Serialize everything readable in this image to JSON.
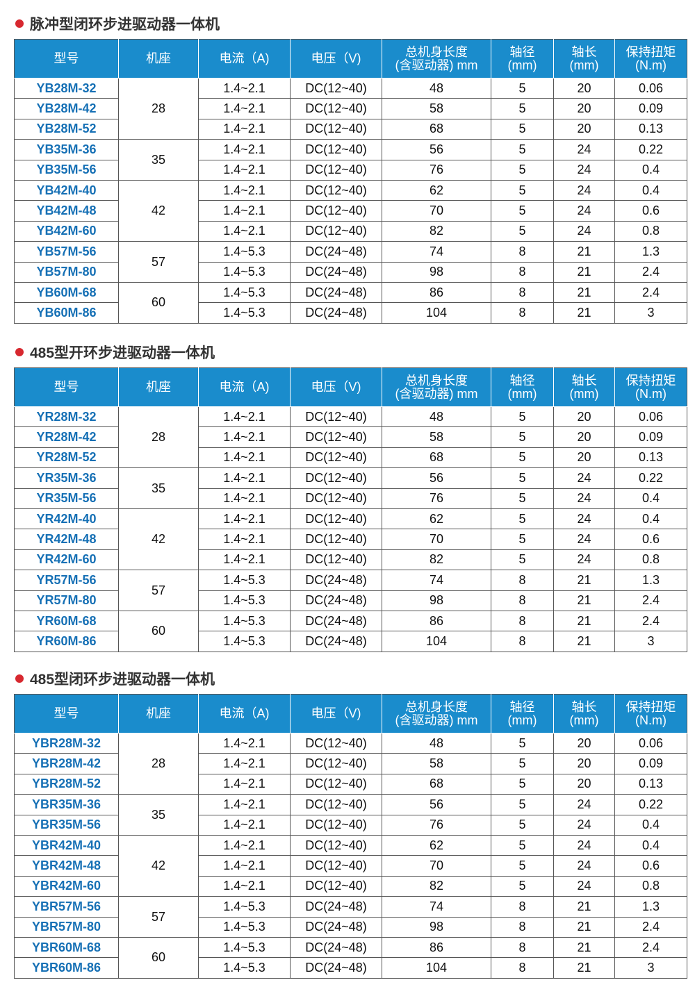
{
  "colors": {
    "header_bg": "#1a8ccc",
    "model_text": "#1670b5",
    "bullet": "#d7282f"
  },
  "headers": [
    "型号",
    "机座",
    "电流（A)",
    "电压（V)",
    "总机身长度\n(含驱动器) mm",
    "轴径\n(mm)",
    "轴长\n(mm)",
    "保持扭矩\n(N.m)"
  ],
  "groups": [
    {
      "seat": "28",
      "span": 3
    },
    {
      "seat": "35",
      "span": 2
    },
    {
      "seat": "42",
      "span": 3
    },
    {
      "seat": "57",
      "span": 2
    },
    {
      "seat": "60",
      "span": 2
    }
  ],
  "sections": [
    {
      "title": "脉冲型闭环步进驱动器一体机",
      "rows": [
        [
          "YB28M-32",
          "1.4~2.1",
          "DC(12~40)",
          "48",
          "5",
          "20",
          "0.06"
        ],
        [
          "YB28M-42",
          "1.4~2.1",
          "DC(12~40)",
          "58",
          "5",
          "20",
          "0.09"
        ],
        [
          "YB28M-52",
          "1.4~2.1",
          "DC(12~40)",
          "68",
          "5",
          "20",
          "0.13"
        ],
        [
          "YB35M-36",
          "1.4~2.1",
          "DC(12~40)",
          "56",
          "5",
          "24",
          "0.22"
        ],
        [
          "YB35M-56",
          "1.4~2.1",
          "DC(12~40)",
          "76",
          "5",
          "24",
          "0.4"
        ],
        [
          "YB42M-40",
          "1.4~2.1",
          "DC(12~40)",
          "62",
          "5",
          "24",
          "0.4"
        ],
        [
          "YB42M-48",
          "1.4~2.1",
          "DC(12~40)",
          "70",
          "5",
          "24",
          "0.6"
        ],
        [
          "YB42M-60",
          "1.4~2.1",
          "DC(12~40)",
          "82",
          "5",
          "24",
          "0.8"
        ],
        [
          "YB57M-56",
          "1.4~5.3",
          "DC(24~48)",
          "74",
          "8",
          "21",
          "1.3"
        ],
        [
          "YB57M-80",
          "1.4~5.3",
          "DC(24~48)",
          "98",
          "8",
          "21",
          "2.4"
        ],
        [
          "YB60M-68",
          "1.4~5.3",
          "DC(24~48)",
          "86",
          "8",
          "21",
          "2.4"
        ],
        [
          "YB60M-86",
          "1.4~5.3",
          "DC(24~48)",
          "104",
          "8",
          "21",
          "3"
        ]
      ]
    },
    {
      "title": "485型开环步进驱动器一体机",
      "rows": [
        [
          "YR28M-32",
          "1.4~2.1",
          "DC(12~40)",
          "48",
          "5",
          "20",
          "0.06"
        ],
        [
          "YR28M-42",
          "1.4~2.1",
          "DC(12~40)",
          "58",
          "5",
          "20",
          "0.09"
        ],
        [
          "YR28M-52",
          "1.4~2.1",
          "DC(12~40)",
          "68",
          "5",
          "20",
          "0.13"
        ],
        [
          "YR35M-36",
          "1.4~2.1",
          "DC(12~40)",
          "56",
          "5",
          "24",
          "0.22"
        ],
        [
          "YR35M-56",
          "1.4~2.1",
          "DC(12~40)",
          "76",
          "5",
          "24",
          "0.4"
        ],
        [
          "YR42M-40",
          "1.4~2.1",
          "DC(12~40)",
          "62",
          "5",
          "24",
          "0.4"
        ],
        [
          "YR42M-48",
          "1.4~2.1",
          "DC(12~40)",
          "70",
          "5",
          "24",
          "0.6"
        ],
        [
          "YR42M-60",
          "1.4~2.1",
          "DC(12~40)",
          "82",
          "5",
          "24",
          "0.8"
        ],
        [
          "YR57M-56",
          "1.4~5.3",
          "DC(24~48)",
          "74",
          "8",
          "21",
          "1.3"
        ],
        [
          "YR57M-80",
          "1.4~5.3",
          "DC(24~48)",
          "98",
          "8",
          "21",
          "2.4"
        ],
        [
          "YR60M-68",
          "1.4~5.3",
          "DC(24~48)",
          "86",
          "8",
          "21",
          "2.4"
        ],
        [
          "YR60M-86",
          "1.4~5.3",
          "DC(24~48)",
          "104",
          "8",
          "21",
          "3"
        ]
      ]
    },
    {
      "title": "485型闭环步进驱动器一体机",
      "rows": [
        [
          "YBR28M-32",
          "1.4~2.1",
          "DC(12~40)",
          "48",
          "5",
          "20",
          "0.06"
        ],
        [
          "YBR28M-42",
          "1.4~2.1",
          "DC(12~40)",
          "58",
          "5",
          "20",
          "0.09"
        ],
        [
          "YBR28M-52",
          "1.4~2.1",
          "DC(12~40)",
          "68",
          "5",
          "20",
          "0.13"
        ],
        [
          "YBR35M-36",
          "1.4~2.1",
          "DC(12~40)",
          "56",
          "5",
          "24",
          "0.22"
        ],
        [
          "YBR35M-56",
          "1.4~2.1",
          "DC(12~40)",
          "76",
          "5",
          "24",
          "0.4"
        ],
        [
          "YBR42M-40",
          "1.4~2.1",
          "DC(12~40)",
          "62",
          "5",
          "24",
          "0.4"
        ],
        [
          "YBR42M-48",
          "1.4~2.1",
          "DC(12~40)",
          "70",
          "5",
          "24",
          "0.6"
        ],
        [
          "YBR42M-60",
          "1.4~2.1",
          "DC(12~40)",
          "82",
          "5",
          "24",
          "0.8"
        ],
        [
          "YBR57M-56",
          "1.4~5.3",
          "DC(24~48)",
          "74",
          "8",
          "21",
          "1.3"
        ],
        [
          "YBR57M-80",
          "1.4~5.3",
          "DC(24~48)",
          "98",
          "8",
          "21",
          "2.4"
        ],
        [
          "YBR60M-68",
          "1.4~5.3",
          "DC(24~48)",
          "86",
          "8",
          "21",
          "2.4"
        ],
        [
          "YBR60M-86",
          "1.4~5.3",
          "DC(24~48)",
          "104",
          "8",
          "21",
          "3"
        ]
      ]
    }
  ]
}
